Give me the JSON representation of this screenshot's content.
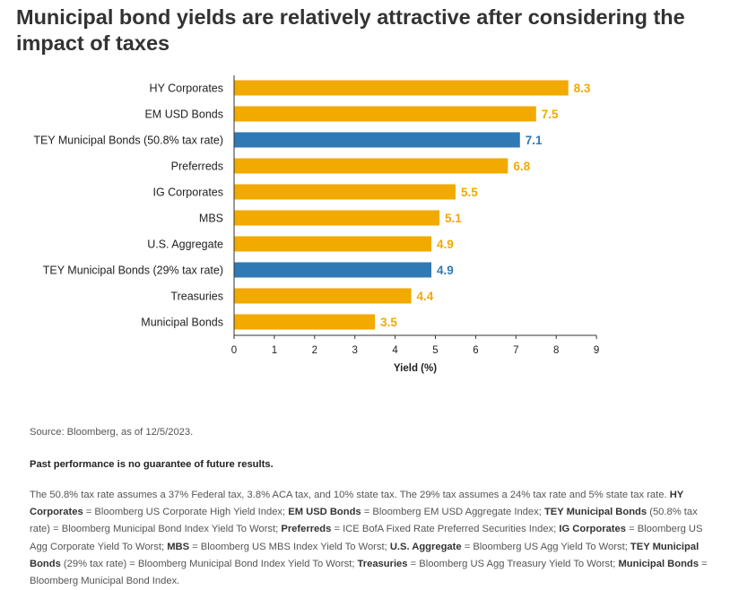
{
  "title": "Municipal bond yields are relatively attractive after considering the impact of taxes",
  "chart_data": {
    "type": "bar",
    "orientation": "horizontal",
    "title": "Municipal bond yields are relatively attractive after considering the impact of taxes",
    "xlabel": "Yield (%)",
    "ylabel": "",
    "xlim": [
      0,
      9
    ],
    "xticks": [
      "0",
      "1",
      "2",
      "3",
      "4",
      "5",
      "6",
      "7",
      "8",
      "9"
    ],
    "grid": false,
    "categories": [
      "HY Corporates",
      "EM USD Bonds",
      "TEY Municipal Bonds (50.8% tax rate)",
      "Preferreds",
      "IG Corporates",
      "MBS",
      "U.S. Aggregate",
      "TEY Municipal Bonds (29% tax rate)",
      "Treasuries",
      "Municipal Bonds"
    ],
    "values": [
      8.3,
      7.5,
      7.1,
      6.8,
      5.5,
      5.1,
      4.9,
      4.9,
      4.4,
      3.5
    ],
    "value_labels": [
      "8.3",
      "7.5",
      "7.1",
      "6.8",
      "5.5",
      "5.1",
      "4.9",
      "4.9",
      "4.4",
      "3.5"
    ],
    "highlight": [
      false,
      false,
      true,
      false,
      false,
      false,
      false,
      true,
      false,
      false
    ],
    "colors": {
      "default": "#F2A900",
      "highlight": "#2F7AB5",
      "axis": "#333333"
    }
  },
  "footer": {
    "source": "Source: Bloomberg, as of 12/5/2023.",
    "past_performance": "Past performance is no guarantee of future results.",
    "notes": [
      {
        "text": "The 50.8% tax rate assumes a 37% Federal tax, 3.8% ACA tax, and 10% state tax. The 29% tax assumes a 24% tax rate and 5% state tax rate. "
      },
      {
        "bold": "HY Corporates",
        "text": " = Bloomberg US Corporate High Yield Index; "
      },
      {
        "bold": "EM USD Bonds",
        "text": " = Bloomberg EM USD Aggregate Index; "
      },
      {
        "bold": "TEY Municipal Bonds",
        "text": " (50.8% tax rate) = Bloomberg Municipal Bond Index Yield To Worst; "
      },
      {
        "bold": "Preferreds",
        "text": " =  ICE BofA Fixed Rate Preferred Securities Index; "
      },
      {
        "bold": "IG Corporates",
        "text": " = Bloomberg US Agg Corporate Yield To Worst; "
      },
      {
        "bold": "MBS",
        "text": " = Bloomberg US MBS Index Yield To Worst; "
      },
      {
        "bold": "U.S. Aggregate",
        "text": " = Bloomberg US Agg Yield To Worst; "
      },
      {
        "bold": "TEY Municipal Bonds",
        "text": " (29% tax rate) = Bloomberg Municipal Bond Index Yield To Worst; "
      },
      {
        "bold": "Treasuries",
        "text": " = Bloomberg US Agg Treasury Yield To Worst; "
      },
      {
        "bold": "Municipal Bonds",
        "text": " = Bloomberg Municipal Bond Index."
      }
    ]
  }
}
